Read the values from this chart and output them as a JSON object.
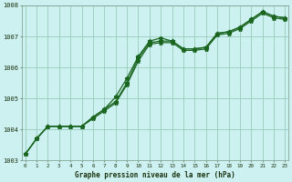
{
  "title": "Graphe pression niveau de la mer (hPa)",
  "bg_color": "#cdf0f0",
  "grid_color": "#99ccbb",
  "line_color": "#1a6620",
  "x_labels": [
    "0",
    "1",
    "2",
    "3",
    "4",
    "5",
    "6",
    "7",
    "8",
    "9",
    "10",
    "11",
    "12",
    "13",
    "14",
    "15",
    "16",
    "17",
    "18",
    "19",
    "20",
    "21",
    "22",
    "23"
  ],
  "ylim": [
    1003,
    1008
  ],
  "yticks": [
    1003,
    1004,
    1005,
    1006,
    1007,
    1008
  ],
  "series_main": [
    1003.2,
    1003.7,
    1004.1,
    1004.1,
    1004.1,
    1004.1,
    1004.4,
    1004.65,
    1004.9,
    1005.5,
    1006.3,
    1006.8,
    1006.85,
    1006.85,
    1006.6,
    1006.6,
    1006.65,
    1007.1,
    1007.15,
    1007.3,
    1007.55,
    1007.8,
    1007.65,
    1007.6
  ],
  "series_high": [
    1003.2,
    1003.7,
    1004.1,
    1004.1,
    1004.1,
    1004.1,
    1004.4,
    1004.65,
    1005.05,
    1005.65,
    1006.35,
    1006.85,
    1006.95,
    1006.85,
    1006.6,
    1006.6,
    1006.65,
    1007.1,
    1007.15,
    1007.3,
    1007.55,
    1007.8,
    1007.65,
    1007.6
  ],
  "series_low": [
    1003.2,
    1003.7,
    1004.1,
    1004.1,
    1004.1,
    1004.1,
    1004.35,
    1004.6,
    1004.85,
    1005.45,
    1006.2,
    1006.75,
    1006.8,
    1006.8,
    1006.55,
    1006.55,
    1006.6,
    1007.05,
    1007.1,
    1007.25,
    1007.5,
    1007.75,
    1007.6,
    1007.55
  ]
}
